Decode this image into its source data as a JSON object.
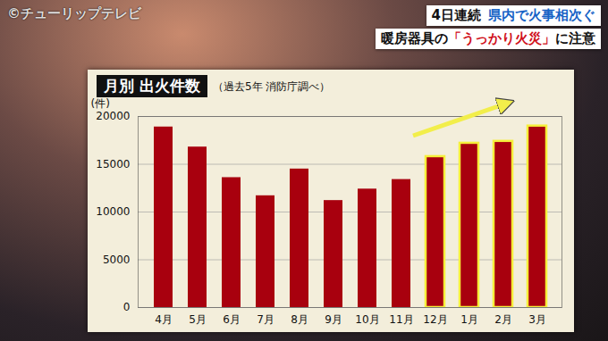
{
  "chart_data": {
    "type": "bar",
    "title": "月別 出火件数",
    "subtitle": "（過去5年 消防庁調べ）",
    "ylabel": "(件)",
    "categories": [
      "4月",
      "5月",
      "6月",
      "7月",
      "8月",
      "9月",
      "10月",
      "11月",
      "12月",
      "1月",
      "2月",
      "3月"
    ],
    "values": [
      18900,
      16800,
      13600,
      11700,
      14500,
      11200,
      12400,
      13400,
      15800,
      17200,
      17400,
      19000
    ],
    "color": "#a8000e",
    "highlight": [
      false,
      false,
      false,
      false,
      false,
      false,
      false,
      false,
      true,
      true,
      true,
      true
    ],
    "ylim": [
      0,
      20000
    ],
    "yticks": [
      0,
      5000,
      10000,
      15000,
      20000
    ],
    "grid": true
  },
  "screen": {
    "watermark": "©チューリップテレビ",
    "headline": [
      "4日連続",
      "県内で火事相次ぐ"
    ],
    "subheadline": [
      "暖房器具の",
      "「うっかり火災」",
      "に注意"
    ]
  }
}
